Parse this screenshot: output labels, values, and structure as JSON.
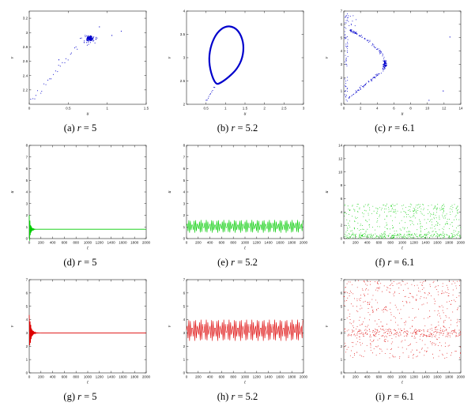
{
  "figure": {
    "background": "#ffffff",
    "rows": 3,
    "cols": 3
  },
  "chart_data": [
    {
      "id": "a",
      "type": "scatter",
      "color": "#0000cc",
      "seed": 101,
      "caption_label": "(a)",
      "caption_var": "r",
      "caption_val": "= 5",
      "xlabel": "u",
      "ylabel": "v",
      "xlim": [
        0,
        1.5
      ],
      "ylim": [
        2,
        3.3
      ],
      "xticks": [
        0,
        0.5,
        1,
        1.5
      ],
      "yticks": [
        2.2,
        2.4,
        2.6,
        2.8,
        3,
        3.2
      ],
      "elements": [
        {
          "kind": "diag",
          "x0": 0.02,
          "y0": 2.06,
          "x1": 0.62,
          "y1": 2.8,
          "n": 26,
          "jitter": 0.018,
          "r": 0.55
        },
        {
          "kind": "cluster",
          "cx": 0.78,
          "cy": 2.92,
          "sx": 0.06,
          "sy": 0.05,
          "n": 150,
          "r": 0.55
        },
        {
          "kind": "cluster",
          "cx": 0.76,
          "cy": 2.9,
          "sx": 0.16,
          "sy": 0.11,
          "n": 35,
          "r": 0.55
        },
        {
          "kind": "points",
          "pts": [
            [
              1.06,
              2.96
            ],
            [
              1.18,
              3.02
            ],
            [
              0.38,
              2.62
            ],
            [
              0.9,
              3.08
            ]
          ],
          "r": 0.6
        }
      ]
    },
    {
      "id": "b",
      "type": "scatter",
      "color": "#0000cc",
      "seed": 102,
      "caption_label": "(b)",
      "caption_var": "r",
      "caption_val": "= 5.2",
      "xlabel": "u",
      "ylabel": "v",
      "xlim": [
        0,
        3
      ],
      "ylim": [
        2,
        4
      ],
      "xticks": [
        0.5,
        1,
        1.5,
        2,
        2.5,
        3
      ],
      "yticks": [
        2,
        2.5,
        3,
        3.5,
        4
      ],
      "elements": [
        {
          "kind": "loop",
          "lw": 2.2,
          "pts": [
            [
              0.75,
              2.42
            ],
            [
              0.62,
              2.68
            ],
            [
              0.57,
              2.98
            ],
            [
              0.63,
              3.28
            ],
            [
              0.78,
              3.54
            ],
            [
              1.0,
              3.68
            ],
            [
              1.22,
              3.66
            ],
            [
              1.38,
              3.52
            ],
            [
              1.47,
              3.28
            ],
            [
              1.44,
              3.0
            ],
            [
              1.3,
              2.76
            ],
            [
              1.08,
              2.58
            ],
            [
              0.88,
              2.46
            ]
          ]
        },
        {
          "kind": "diag",
          "x0": 0.5,
          "y0": 2.05,
          "x1": 0.72,
          "y1": 2.38,
          "n": 10,
          "jitter": 0.012,
          "r": 0.55
        }
      ]
    },
    {
      "id": "c",
      "type": "scatter",
      "color": "#0000cc",
      "seed": 103,
      "caption_label": "(c)",
      "caption_var": "r",
      "caption_val": "= 6.1",
      "xlabel": "u",
      "ylabel": "v",
      "xlim": [
        0,
        14
      ],
      "ylim": [
        0,
        7
      ],
      "xticks": [
        0,
        2,
        4,
        6,
        8,
        10,
        12,
        14
      ],
      "yticks": [
        0,
        1,
        2,
        3,
        4,
        5,
        6,
        7
      ],
      "elements": [
        {
          "kind": "rect",
          "xa": 0.1,
          "xb": 0.5,
          "ya": 0.15,
          "yb": 6.9,
          "n": 60,
          "r": 0.5
        },
        {
          "kind": "pathscatter",
          "n": 170,
          "jitter": 0.13,
          "r": 0.5,
          "pts": [
            [
              0.6,
              0.5
            ],
            [
              2.0,
              1.2
            ],
            [
              3.5,
              1.9
            ],
            [
              4.6,
              2.5
            ],
            [
              5.1,
              3.0
            ],
            [
              4.7,
              3.7
            ],
            [
              3.8,
              4.3
            ],
            [
              2.6,
              4.9
            ],
            [
              1.4,
              5.35
            ],
            [
              0.7,
              5.6
            ]
          ]
        },
        {
          "kind": "cluster",
          "cx": 4.9,
          "cy": 3.0,
          "sx": 0.3,
          "sy": 0.45,
          "n": 60,
          "r": 0.5
        },
        {
          "kind": "rect",
          "xa": 0.3,
          "xb": 1.6,
          "ya": 5.8,
          "yb": 6.8,
          "n": 12,
          "r": 0.5
        },
        {
          "kind": "points",
          "pts": [
            [
              11.9,
              1.0
            ],
            [
              12.7,
              5.05
            ],
            [
              10.2,
              0.3
            ]
          ],
          "r": 0.6
        }
      ]
    },
    {
      "id": "d",
      "type": "line",
      "color": "#00cc00",
      "seed": 104,
      "caption_label": "(d)",
      "caption_var": "r",
      "caption_val": "= 5",
      "xlabel": "t",
      "ylabel": "u",
      "xlim": [
        0,
        2000
      ],
      "ylim": [
        0,
        8
      ],
      "xticks": [
        0,
        200,
        400,
        600,
        800,
        1000,
        1200,
        1400,
        1600,
        1800,
        2000
      ],
      "yticks": [
        0,
        1,
        2,
        3,
        4,
        5,
        6,
        7,
        8
      ],
      "elements": [
        {
          "kind": "transient",
          "steady": 0.8,
          "amp": 1.3,
          "decay": 22,
          "period": 11,
          "phase": 1.2,
          "dt": 3,
          "lw": 0.8
        }
      ]
    },
    {
      "id": "e",
      "type": "line",
      "color": "#00cc00",
      "seed": 105,
      "caption_label": "(e)",
      "caption_var": "r",
      "caption_val": "= 5.2",
      "xlabel": "t",
      "ylabel": "u",
      "xlim": [
        0,
        2000
      ],
      "ylim": [
        0,
        8
      ],
      "xticks": [
        0,
        200,
        400,
        600,
        800,
        1000,
        1200,
        1400,
        1600,
        1800,
        2000
      ],
      "yticks": [
        0,
        1,
        2,
        3,
        4,
        5,
        6,
        7,
        8
      ],
      "elements": [
        {
          "kind": "zigzag",
          "center": 1.05,
          "amp": 0.55,
          "period": 30,
          "dt": 13,
          "lw": 0.6
        }
      ]
    },
    {
      "id": "f",
      "type": "scatter",
      "color": "#00cc00",
      "seed": 106,
      "caption_label": "(f)",
      "caption_var": "r",
      "caption_val": "= 6.1",
      "xlabel": "t",
      "ylabel": "u",
      "xlim": [
        0,
        2000
      ],
      "ylim": [
        0,
        14
      ],
      "xticks": [
        0,
        200,
        400,
        600,
        800,
        1000,
        1200,
        1400,
        1600,
        1800,
        2000
      ],
      "yticks": [
        0,
        2,
        4,
        6,
        8,
        10,
        12,
        14
      ],
      "elements": [
        {
          "kind": "bands",
          "n": 650,
          "r": 0.45,
          "bands": [
            {
              "y0": 0.05,
              "y1": 0.7,
              "frac": 0.4
            },
            {
              "y0": 3.6,
              "y1": 5.2,
              "frac": 0.27
            },
            {
              "y0": 0.7,
              "y1": 3.6,
              "frac": 0.33
            }
          ]
        }
      ]
    },
    {
      "id": "g",
      "type": "line",
      "color": "#dd0000",
      "seed": 107,
      "caption_label": "(g)",
      "caption_var": "r",
      "caption_val": "= 5",
      "xlabel": "t",
      "ylabel": "v",
      "xlim": [
        0,
        2000
      ],
      "ylim": [
        0,
        7
      ],
      "xticks": [
        0,
        200,
        400,
        600,
        800,
        1000,
        1200,
        1400,
        1600,
        1800,
        2000
      ],
      "yticks": [
        0,
        1,
        2,
        3,
        4,
        5,
        6,
        7
      ],
      "elements": [
        {
          "kind": "transient",
          "steady": 3.0,
          "amp": 1.6,
          "decay": 28,
          "period": 13,
          "phase": 1.0,
          "dt": 3,
          "lw": 0.8
        }
      ]
    },
    {
      "id": "h",
      "type": "line",
      "color": "#dd0000",
      "seed": 108,
      "caption_label": "(h)",
      "caption_var": "r",
      "caption_val": "= 5.2",
      "xlabel": "t",
      "ylabel": "v",
      "xlim": [
        0,
        2000
      ],
      "ylim": [
        0,
        7
      ],
      "xticks": [
        0,
        200,
        400,
        600,
        800,
        1000,
        1200,
        1400,
        1600,
        1800,
        2000
      ],
      "yticks": [
        0,
        1,
        2,
        3,
        4,
        5,
        6,
        7
      ],
      "elements": [
        {
          "kind": "zigzag",
          "center": 3.2,
          "amp": 0.8,
          "period": 30,
          "dt": 13,
          "lw": 0.6
        }
      ]
    },
    {
      "id": "i",
      "type": "scatter",
      "color": "#dd0000",
      "seed": 109,
      "caption_label": "(i)",
      "caption_var": "r",
      "caption_val": "= 6.1",
      "xlabel": "t",
      "ylabel": "v",
      "xlim": [
        0,
        2000
      ],
      "ylim": [
        0,
        7
      ],
      "xticks": [
        0,
        200,
        400,
        600,
        800,
        1000,
        1200,
        1400,
        1600,
        1800,
        2000
      ],
      "yticks": [
        0,
        1,
        2,
        3,
        4,
        5,
        6,
        7
      ],
      "elements": [
        {
          "kind": "bands",
          "n": 750,
          "r": 0.45,
          "bands": [
            {
              "y0": 2.7,
              "y1": 3.3,
              "frac": 0.38
            },
            {
              "y0": 5.4,
              "y1": 6.95,
              "frac": 0.22
            },
            {
              "y0": 1.1,
              "y1": 2.7,
              "frac": 0.18
            },
            {
              "y0": 3.3,
              "y1": 5.4,
              "frac": 0.22
            }
          ]
        }
      ]
    }
  ]
}
